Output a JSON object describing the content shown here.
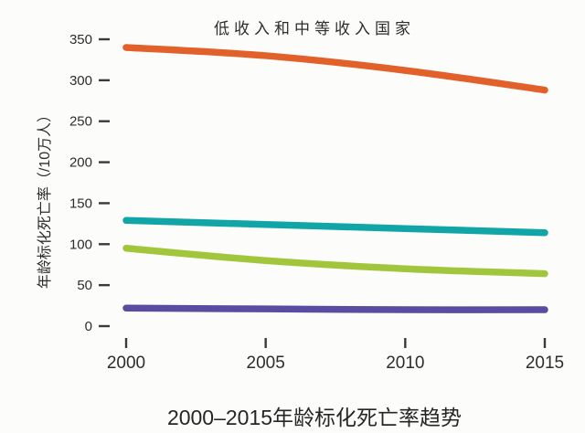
{
  "figure": {
    "background": "#fcfcfa",
    "axis_color": "#3a3a3a",
    "text_color": "#2d2d2d"
  },
  "chart_data": {
    "type": "line",
    "title": "低收入和中等收入国家",
    "caption": "2000–2015年龄标化死亡率趋势",
    "ylabel": "年龄标化死亡率（/10万人）",
    "xlabel": "",
    "x": [
      2000,
      2005,
      2010,
      2015
    ],
    "xticklabels": [
      "2000",
      "2005",
      "2010",
      "2015"
    ],
    "yticks": [
      0,
      50,
      100,
      150,
      200,
      250,
      300,
      350
    ],
    "ylim": [
      0,
      350
    ],
    "grid": false,
    "legend_position": "none",
    "series": [
      {
        "name": "orange-line",
        "color": "#e2612a",
        "values": [
          340,
          330,
          312,
          288
        ]
      },
      {
        "name": "teal-line",
        "color": "#12a5a8",
        "values": [
          129,
          124,
          119,
          114
        ]
      },
      {
        "name": "green-line",
        "color": "#a1c63c",
        "values": [
          95,
          80,
          70,
          64
        ]
      },
      {
        "name": "purple-line",
        "color": "#5a4da1",
        "values": [
          22,
          21,
          20,
          20
        ]
      }
    ]
  }
}
